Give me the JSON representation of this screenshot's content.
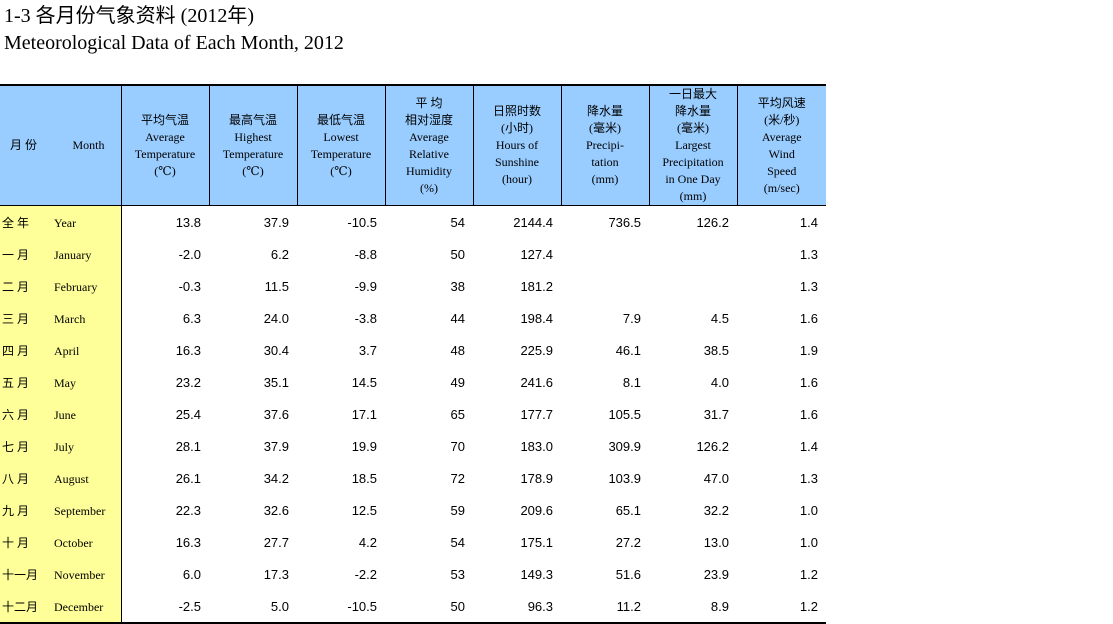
{
  "title": {
    "zh": "1-3  各月份气象资料 (2012年)",
    "en": "Meteorological Data of Each Month, 2012"
  },
  "header": {
    "month": {
      "zh": "月 份",
      "en": "Month"
    },
    "columns": [
      {
        "lines": [
          "平均气温",
          "Average",
          "Temperature",
          "(℃)"
        ]
      },
      {
        "lines": [
          "最高气温",
          "Highest",
          "Temperature",
          "(℃)"
        ]
      },
      {
        "lines": [
          "最低气温",
          "Lowest",
          "Temperature",
          "(℃)"
        ]
      },
      {
        "lines": [
          "平    均",
          "相对湿度",
          "Average",
          "Relative",
          "Humidity",
          "(%)"
        ]
      },
      {
        "lines": [
          "日照时数",
          "(小时)",
          "Hours of",
          "Sunshine",
          "(hour)"
        ]
      },
      {
        "lines": [
          "降水量",
          "(毫米)",
          "Precipi-",
          "tation",
          "(mm)"
        ]
      },
      {
        "lines": [
          "一日最大",
          "降水量",
          "(毫米)",
          "Largest",
          "Precipitation",
          "in One Day",
          "(mm)"
        ]
      },
      {
        "lines": [
          "平均风速",
          "(米/秒)",
          "Average",
          "Wind",
          "Speed",
          "(m/sec)"
        ]
      }
    ]
  },
  "rows": [
    {
      "zh": "全   年",
      "en": "Year",
      "values": [
        "13.8",
        "37.9",
        "-10.5",
        "54",
        "2144.4",
        "736.5",
        "126.2",
        "1.4"
      ]
    },
    {
      "zh": "一   月",
      "en": "January",
      "values": [
        "-2.0",
        "6.2",
        "-8.8",
        "50",
        "127.4",
        "",
        "",
        "1.3"
      ]
    },
    {
      "zh": "二   月",
      "en": "February",
      "values": [
        "-0.3",
        "11.5",
        "-9.9",
        "38",
        "181.2",
        "",
        "",
        "1.3"
      ]
    },
    {
      "zh": "三   月",
      "en": "March",
      "values": [
        "6.3",
        "24.0",
        "-3.8",
        "44",
        "198.4",
        "7.9",
        "4.5",
        "1.6"
      ]
    },
    {
      "zh": "四   月",
      "en": "April",
      "values": [
        "16.3",
        "30.4",
        "3.7",
        "48",
        "225.9",
        "46.1",
        "38.5",
        "1.9"
      ]
    },
    {
      "zh": "五   月",
      "en": "May",
      "values": [
        "23.2",
        "35.1",
        "14.5",
        "49",
        "241.6",
        "8.1",
        "4.0",
        "1.6"
      ]
    },
    {
      "zh": "六   月",
      "en": "June",
      "values": [
        "25.4",
        "37.6",
        "17.1",
        "65",
        "177.7",
        "105.5",
        "31.7",
        "1.6"
      ]
    },
    {
      "zh": "七   月",
      "en": "July",
      "values": [
        "28.1",
        "37.9",
        "19.9",
        "70",
        "183.0",
        "309.9",
        "126.2",
        "1.4"
      ]
    },
    {
      "zh": "八   月",
      "en": "August",
      "values": [
        "26.1",
        "34.2",
        "18.5",
        "72",
        "178.9",
        "103.9",
        "47.0",
        "1.3"
      ]
    },
    {
      "zh": "九   月",
      "en": "September",
      "values": [
        "22.3",
        "32.6",
        "12.5",
        "59",
        "209.6",
        "65.1",
        "32.2",
        "1.0"
      ]
    },
    {
      "zh": "十   月",
      "en": "October",
      "values": [
        "16.3",
        "27.7",
        "4.2",
        "54",
        "175.1",
        "27.2",
        "13.0",
        "1.0"
      ]
    },
    {
      "zh": "十一月",
      "en": "November",
      "values": [
        "6.0",
        "17.3",
        "-2.2",
        "53",
        "149.3",
        "51.6",
        "23.9",
        "1.2"
      ]
    },
    {
      "zh": "十二月",
      "en": "December",
      "values": [
        "-2.5",
        "5.0",
        "-10.5",
        "50",
        "96.3",
        "11.2",
        "8.9",
        "1.2"
      ]
    }
  ]
}
